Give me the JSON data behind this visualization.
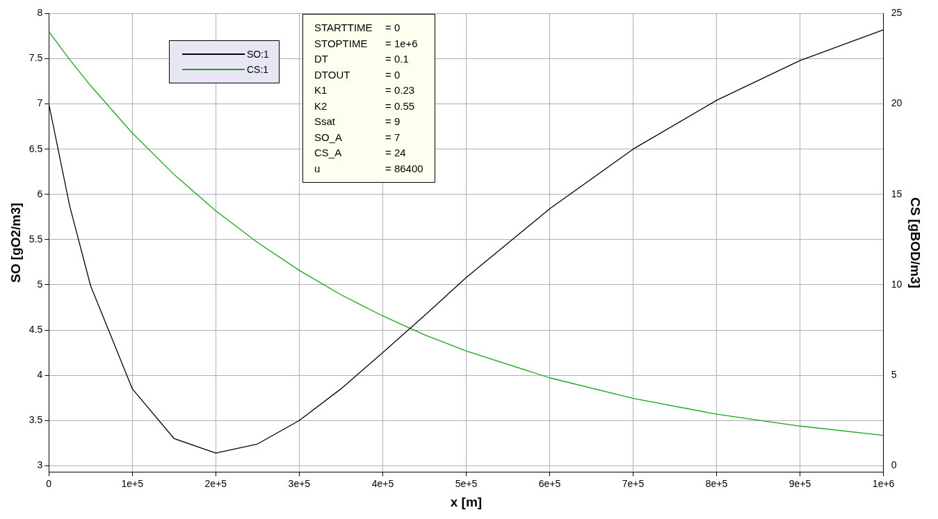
{
  "chart_data": {
    "type": "line",
    "xlabel": "x [m]",
    "ylabel": "SO [gO2/m3]",
    "y2label": "CS [gBOD/m3]",
    "xlim": [
      0,
      1000000
    ],
    "xticks": [
      0,
      {
        "value": 100000,
        "label": "1e+5"
      },
      {
        "value": 200000,
        "label": "2e+5"
      },
      {
        "value": 300000,
        "label": "3e+5"
      },
      {
        "value": 400000,
        "label": "4e+5"
      },
      {
        "value": 500000,
        "label": "5e+5"
      },
      {
        "value": 600000,
        "label": "6e+5"
      },
      {
        "value": 700000,
        "label": "7e+5"
      },
      {
        "value": 800000,
        "label": "8e+5"
      },
      {
        "value": 900000,
        "label": "9e+5"
      },
      {
        "value": 1000000,
        "label": "1e+6"
      }
    ],
    "ylim": [
      2.93,
      8
    ],
    "yticks": [
      3,
      3.5,
      4,
      4.5,
      5,
      5.5,
      6,
      6.5,
      7,
      7.5,
      8
    ],
    "y2lim": [
      -0.35,
      25
    ],
    "y2ticks": [
      0,
      5,
      10,
      15,
      20,
      25
    ],
    "x": [
      0,
      25000,
      50000,
      100000,
      150000,
      200000,
      250000,
      300000,
      350000,
      400000,
      450000,
      500000,
      600000,
      700000,
      800000,
      900000,
      1000000
    ],
    "series": [
      {
        "name": "SO:1",
        "color": "#000000",
        "values": [
          7,
          5.87,
          4.99,
          3.85,
          3.3,
          3.14,
          3.24,
          3.5,
          3.85,
          4.25,
          4.66,
          5.08,
          5.84,
          6.5,
          7.04,
          7.48,
          7.82
        ]
      },
      {
        "name": "CS:1",
        "color": "#1aa31a",
        "axis": "y2",
        "values": [
          24,
          22.45,
          21.01,
          18.39,
          16.1,
          14.09,
          12.34,
          10.8,
          9.45,
          8.28,
          7.24,
          6.34,
          4.86,
          3.72,
          2.85,
          2.19,
          1.68
        ]
      }
    ],
    "annotations": [
      "STARTTIME = 0",
      "STOPTIME = 1e+6",
      "DT = 0.1",
      "DTOUT = 0",
      "K1 = 0.23",
      "K2 = 0.55",
      "Ssat = 9",
      "SO_A = 7",
      "CS_A = 24",
      "u = 86400"
    ],
    "grid": true,
    "legend": "top left",
    "marker": "none",
    "line_style": "solid"
  }
}
